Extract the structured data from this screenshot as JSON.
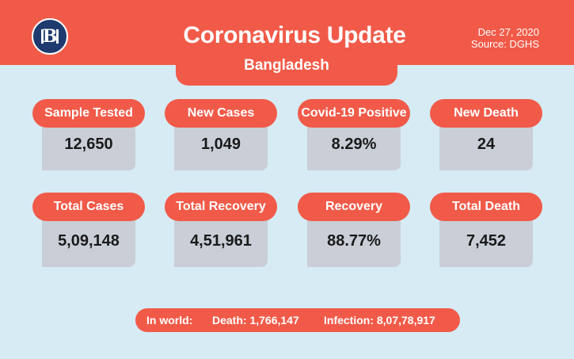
{
  "header": {
    "logo_text": "B",
    "title": "Coronavirus Update",
    "subtitle": "Bangladesh",
    "date": "Dec 27, 2020",
    "source": "Source: DGHS",
    "accent_color": "#f15a48",
    "background_color": "#d6ebf4"
  },
  "stats": [
    {
      "label": "Sample Tested",
      "value": "12,650"
    },
    {
      "label": "New Cases",
      "value": "1,049"
    },
    {
      "label": "Covid-19 Positive",
      "value": "8.29%"
    },
    {
      "label": "New Death",
      "value": "24"
    },
    {
      "label": "Total Cases",
      "value": "5,09,148"
    },
    {
      "label": "Total Recovery",
      "value": "4,51,961"
    },
    {
      "label": "Recovery",
      "value": "88.77%"
    },
    {
      "label": "Total Death",
      "value": "7,452"
    }
  ],
  "footer": {
    "prefix": "In world:",
    "death": "Death: 1,766,147",
    "infection": "Infection: 8,07,78,917"
  }
}
